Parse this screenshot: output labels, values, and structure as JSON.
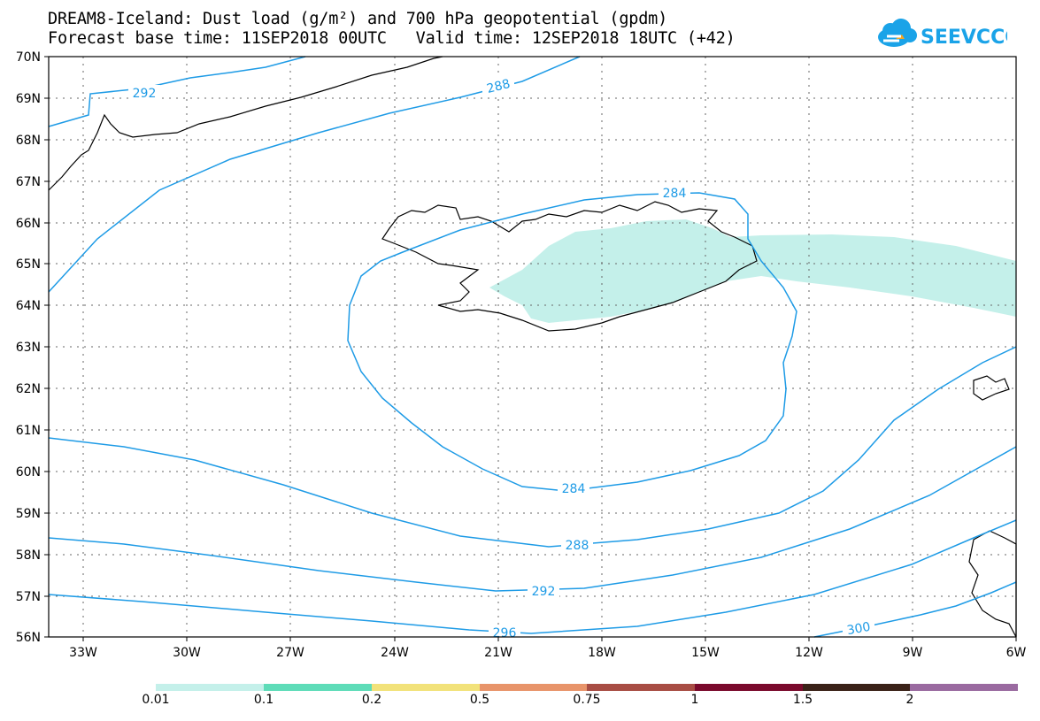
{
  "header": {
    "title_line1": "DREAM8-Iceland: Dust load (g/m²) and 700 hPa geopotential (gpdm)",
    "title_line2": "Forecast base time: 11SEP2018 00UTC   Valid time: 12SEP2018 18UTC (+42)",
    "logo_text": "SEEVCCC"
  },
  "map": {
    "lat_labels": [
      "70N",
      "69N",
      "68N",
      "67N",
      "66N",
      "65N",
      "64N",
      "63N",
      "62N",
      "61N",
      "60N",
      "59N",
      "58N",
      "57N",
      "56N"
    ],
    "lon_labels": [
      "33W",
      "30W",
      "27W",
      "24W",
      "21W",
      "18W",
      "15W",
      "12W",
      "9W",
      "6W"
    ],
    "contour_labels": [
      "292",
      "288",
      "284",
      "284",
      "288",
      "292",
      "296",
      "300"
    ],
    "colors": {
      "contour": "#1e9be6",
      "coast": "#000000",
      "dust_low": "#c4f0ea",
      "grid": "#666666"
    }
  },
  "colorbar": {
    "labels": [
      "0.01",
      "0.1",
      "0.2",
      "0.5",
      "0.75",
      "1",
      "1.5",
      "2"
    ],
    "colors": [
      "#c4f0ea",
      "#5edcb8",
      "#f2e27a",
      "#e8946a",
      "#a84d44",
      "#7a0a2c",
      "#3a2218",
      "#9a6aa0"
    ]
  }
}
